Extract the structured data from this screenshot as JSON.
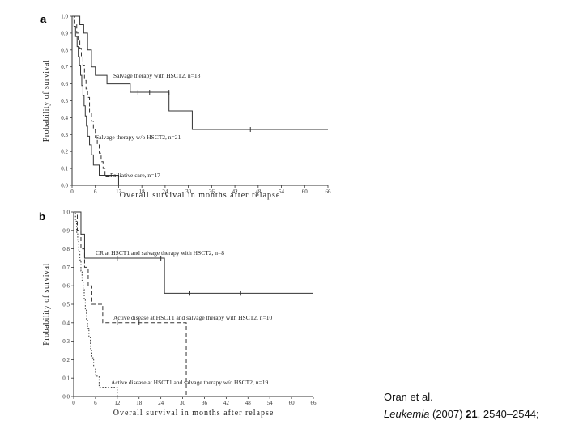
{
  "chart_data": [
    {
      "type": "line",
      "panel": "a",
      "xlabel": "Overall survival in months after relapse",
      "ylabel": "Probability of survival",
      "xlim": [
        0,
        66
      ],
      "ylim": [
        0,
        1.0
      ],
      "xticks": [
        "0",
        "6",
        "12",
        "18",
        "24",
        "30",
        "36",
        "42",
        "48",
        "54",
        "60",
        "66"
      ],
      "yticks": [
        "0.0",
        "0.1",
        "0.2",
        "0.3",
        "0.4",
        "0.5",
        "0.6",
        "0.7",
        "0.8",
        "0.9",
        "1.0"
      ],
      "series": [
        {
          "name": "Salvage therapy with HSCT2, n=18",
          "style": "solid",
          "steps": [
            [
              0,
              1.0
            ],
            [
              2,
              0.95
            ],
            [
              3,
              0.9
            ],
            [
              4,
              0.8
            ],
            [
              5,
              0.7
            ],
            [
              6,
              0.65
            ],
            [
              9,
              0.6
            ],
            [
              15,
              0.55
            ],
            [
              25,
              0.44
            ],
            [
              31,
              0.33
            ],
            [
              66,
              0.33
            ]
          ],
          "censored": [
            [
              17,
              0.55
            ],
            [
              20,
              0.55
            ],
            [
              25,
              0.55
            ],
            [
              46,
              0.33
            ]
          ]
        },
        {
          "name": "Salvage therapy w/o HSCT2, n=21",
          "style": "dashed",
          "steps": [
            [
              0,
              1.0
            ],
            [
              0.7,
              0.95
            ],
            [
              1.2,
              0.9
            ],
            [
              1.6,
              0.86
            ],
            [
              2,
              0.81
            ],
            [
              2.4,
              0.76
            ],
            [
              2.8,
              0.71
            ],
            [
              3.2,
              0.62
            ],
            [
              3.6,
              0.57
            ],
            [
              4,
              0.52
            ],
            [
              4.5,
              0.43
            ],
            [
              5,
              0.38
            ],
            [
              5.5,
              0.33
            ],
            [
              6,
              0.28
            ],
            [
              6.5,
              0.24
            ],
            [
              7,
              0.19
            ],
            [
              7.5,
              0.14
            ],
            [
              8,
              0.1
            ],
            [
              8.5,
              0.05
            ],
            [
              10,
              0.05
            ]
          ],
          "censored": []
        },
        {
          "name": "Palliative care, n=17",
          "style": "solid",
          "steps": [
            [
              0,
              1.0
            ],
            [
              0.5,
              0.94
            ],
            [
              0.9,
              0.88
            ],
            [
              1.3,
              0.82
            ],
            [
              1.6,
              0.76
            ],
            [
              1.9,
              0.71
            ],
            [
              2.2,
              0.65
            ],
            [
              2.5,
              0.59
            ],
            [
              2.8,
              0.53
            ],
            [
              3.1,
              0.47
            ],
            [
              3.4,
              0.41
            ],
            [
              3.7,
              0.35
            ],
            [
              4,
              0.29
            ],
            [
              4.5,
              0.24
            ],
            [
              5,
              0.18
            ],
            [
              5.5,
              0.12
            ],
            [
              7,
              0.06
            ],
            [
              12,
              0.06
            ],
            [
              12,
              0.0
            ],
            [
              24,
              0.0
            ]
          ],
          "censored": []
        }
      ]
    },
    {
      "type": "line",
      "panel": "b",
      "xlabel": "Overall survival in months after relapse",
      "ylabel": "Probability of survival",
      "xlim": [
        0,
        66
      ],
      "ylim": [
        0,
        1.0
      ],
      "xticks": [
        "0",
        "6",
        "12",
        "18",
        "24",
        "30",
        "36",
        "42",
        "48",
        "54",
        "60",
        "66"
      ],
      "yticks": [
        "0.0",
        "0.1",
        "0.2",
        "0.3",
        "0.4",
        "0.5",
        "0.6",
        "0.7",
        "0.8",
        "0.9",
        "1.0"
      ],
      "series": [
        {
          "name": "CR at HSCT1 and salvage therapy with HSCT2, n=8",
          "style": "solid",
          "steps": [
            [
              0,
              1.0
            ],
            [
              2,
              0.88
            ],
            [
              3,
              0.75
            ],
            [
              25,
              0.56
            ],
            [
              66,
              0.56
            ]
          ],
          "censored": [
            [
              12,
              0.75
            ],
            [
              24,
              0.75
            ],
            [
              32,
              0.56
            ],
            [
              46,
              0.56
            ]
          ]
        },
        {
          "name": "Active disease at HSCT1 and salvage therapy with HSCT2, n=10",
          "style": "dashed",
          "steps": [
            [
              0,
              1.0
            ],
            [
              1,
              0.9
            ],
            [
              2,
              0.8
            ],
            [
              3,
              0.7
            ],
            [
              4,
              0.6
            ],
            [
              5,
              0.5
            ],
            [
              8,
              0.4
            ],
            [
              31,
              0.0
            ]
          ],
          "censored": [
            [
              12,
              0.4
            ],
            [
              18,
              0.4
            ]
          ]
        },
        {
          "name": "Active disease at HSCT1 and salvage therapy w/o HSCT2, n=19",
          "style": "dotted",
          "steps": [
            [
              0,
              1.0
            ],
            [
              0.5,
              0.95
            ],
            [
              0.8,
              0.89
            ],
            [
              1.1,
              0.84
            ],
            [
              1.4,
              0.79
            ],
            [
              1.7,
              0.74
            ],
            [
              2,
              0.68
            ],
            [
              2.3,
              0.63
            ],
            [
              2.6,
              0.58
            ],
            [
              2.9,
              0.53
            ],
            [
              3.2,
              0.47
            ],
            [
              3.5,
              0.42
            ],
            [
              3.8,
              0.37
            ],
            [
              4.2,
              0.32
            ],
            [
              4.6,
              0.26
            ],
            [
              5,
              0.21
            ],
            [
              5.5,
              0.16
            ],
            [
              6,
              0.11
            ],
            [
              7,
              0.05
            ],
            [
              12,
              0.05
            ],
            [
              12,
              0.0
            ],
            [
              24,
              0.0
            ]
          ],
          "censored": []
        }
      ]
    }
  ],
  "citation": {
    "authors": "Oran et al.",
    "journal": "Leukemia",
    "year": "(2007)",
    "volume": "21",
    "pages": ", 2540–2544;"
  }
}
